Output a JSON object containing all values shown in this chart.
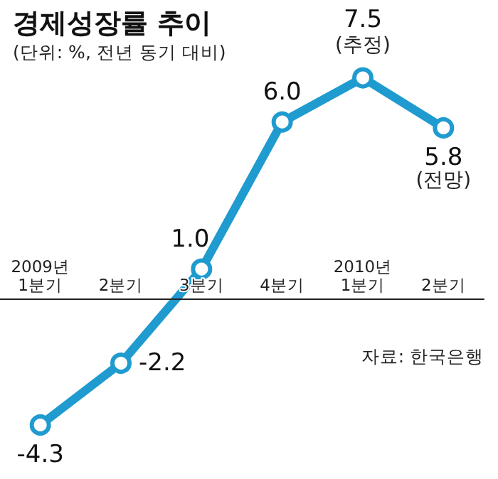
{
  "chart_data": {
    "type": "line",
    "title": "경제성장률 추이",
    "subtitle": "(단위: %, 전년 동기 대비)",
    "categories": [
      "2009년\n1분기",
      "2분기",
      "3분기",
      "4분기",
      "2010년\n1분기",
      "2분기"
    ],
    "series": [
      {
        "color": "#1f9bcf",
        "values": [
          -4.3,
          -2.2,
          1.0,
          6.0,
          7.5,
          5.8
        ],
        "value_labels": [
          "-4.3",
          "-2.2",
          "1.0",
          "6.0",
          "7.5",
          "5.8"
        ]
      }
    ],
    "marker": "circle",
    "line_style": "solid",
    "grid": false,
    "annotations": [
      {
        "text": "(추정)",
        "x": "2010년\n1분기",
        "y": 7.5
      },
      "(전망)",
      "자료: 한국은행"
    ]
  }
}
